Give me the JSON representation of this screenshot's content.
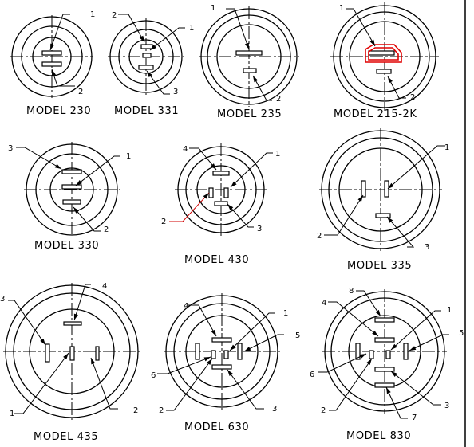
{
  "diagram_title": "",
  "models": [
    {
      "label": "MODEL 230",
      "pins": [
        "1",
        "2"
      ]
    },
    {
      "label": "MODEL 331",
      "pins": [
        "1",
        "2",
        "3"
      ]
    },
    {
      "label": "MODEL 235",
      "pins": [
        "1",
        "2"
      ]
    },
    {
      "label": "MODEL 215-2K",
      "pins": [
        "1",
        "2"
      ],
      "highlighted_pin": "1"
    },
    {
      "label": "MODEL 330",
      "pins": [
        "1",
        "2",
        "3"
      ]
    },
    {
      "label": "MODEL 430",
      "pins": [
        "1",
        "2",
        "3",
        "4"
      ]
    },
    {
      "label": "MODEL 335",
      "pins": [
        "1",
        "2",
        "3"
      ]
    },
    {
      "label": "MODEL 435",
      "pins": [
        "1",
        "2",
        "3",
        "4"
      ]
    },
    {
      "label": "MODEL 630",
      "pins": [
        "1",
        "2",
        "3",
        "4",
        "5",
        "6"
      ]
    },
    {
      "label": "MODEL 830",
      "pins": [
        "1",
        "2",
        "3",
        "4",
        "5",
        "6",
        "7",
        "8"
      ]
    }
  ],
  "colors": {
    "line": "#000000",
    "highlight": "#e00000"
  }
}
